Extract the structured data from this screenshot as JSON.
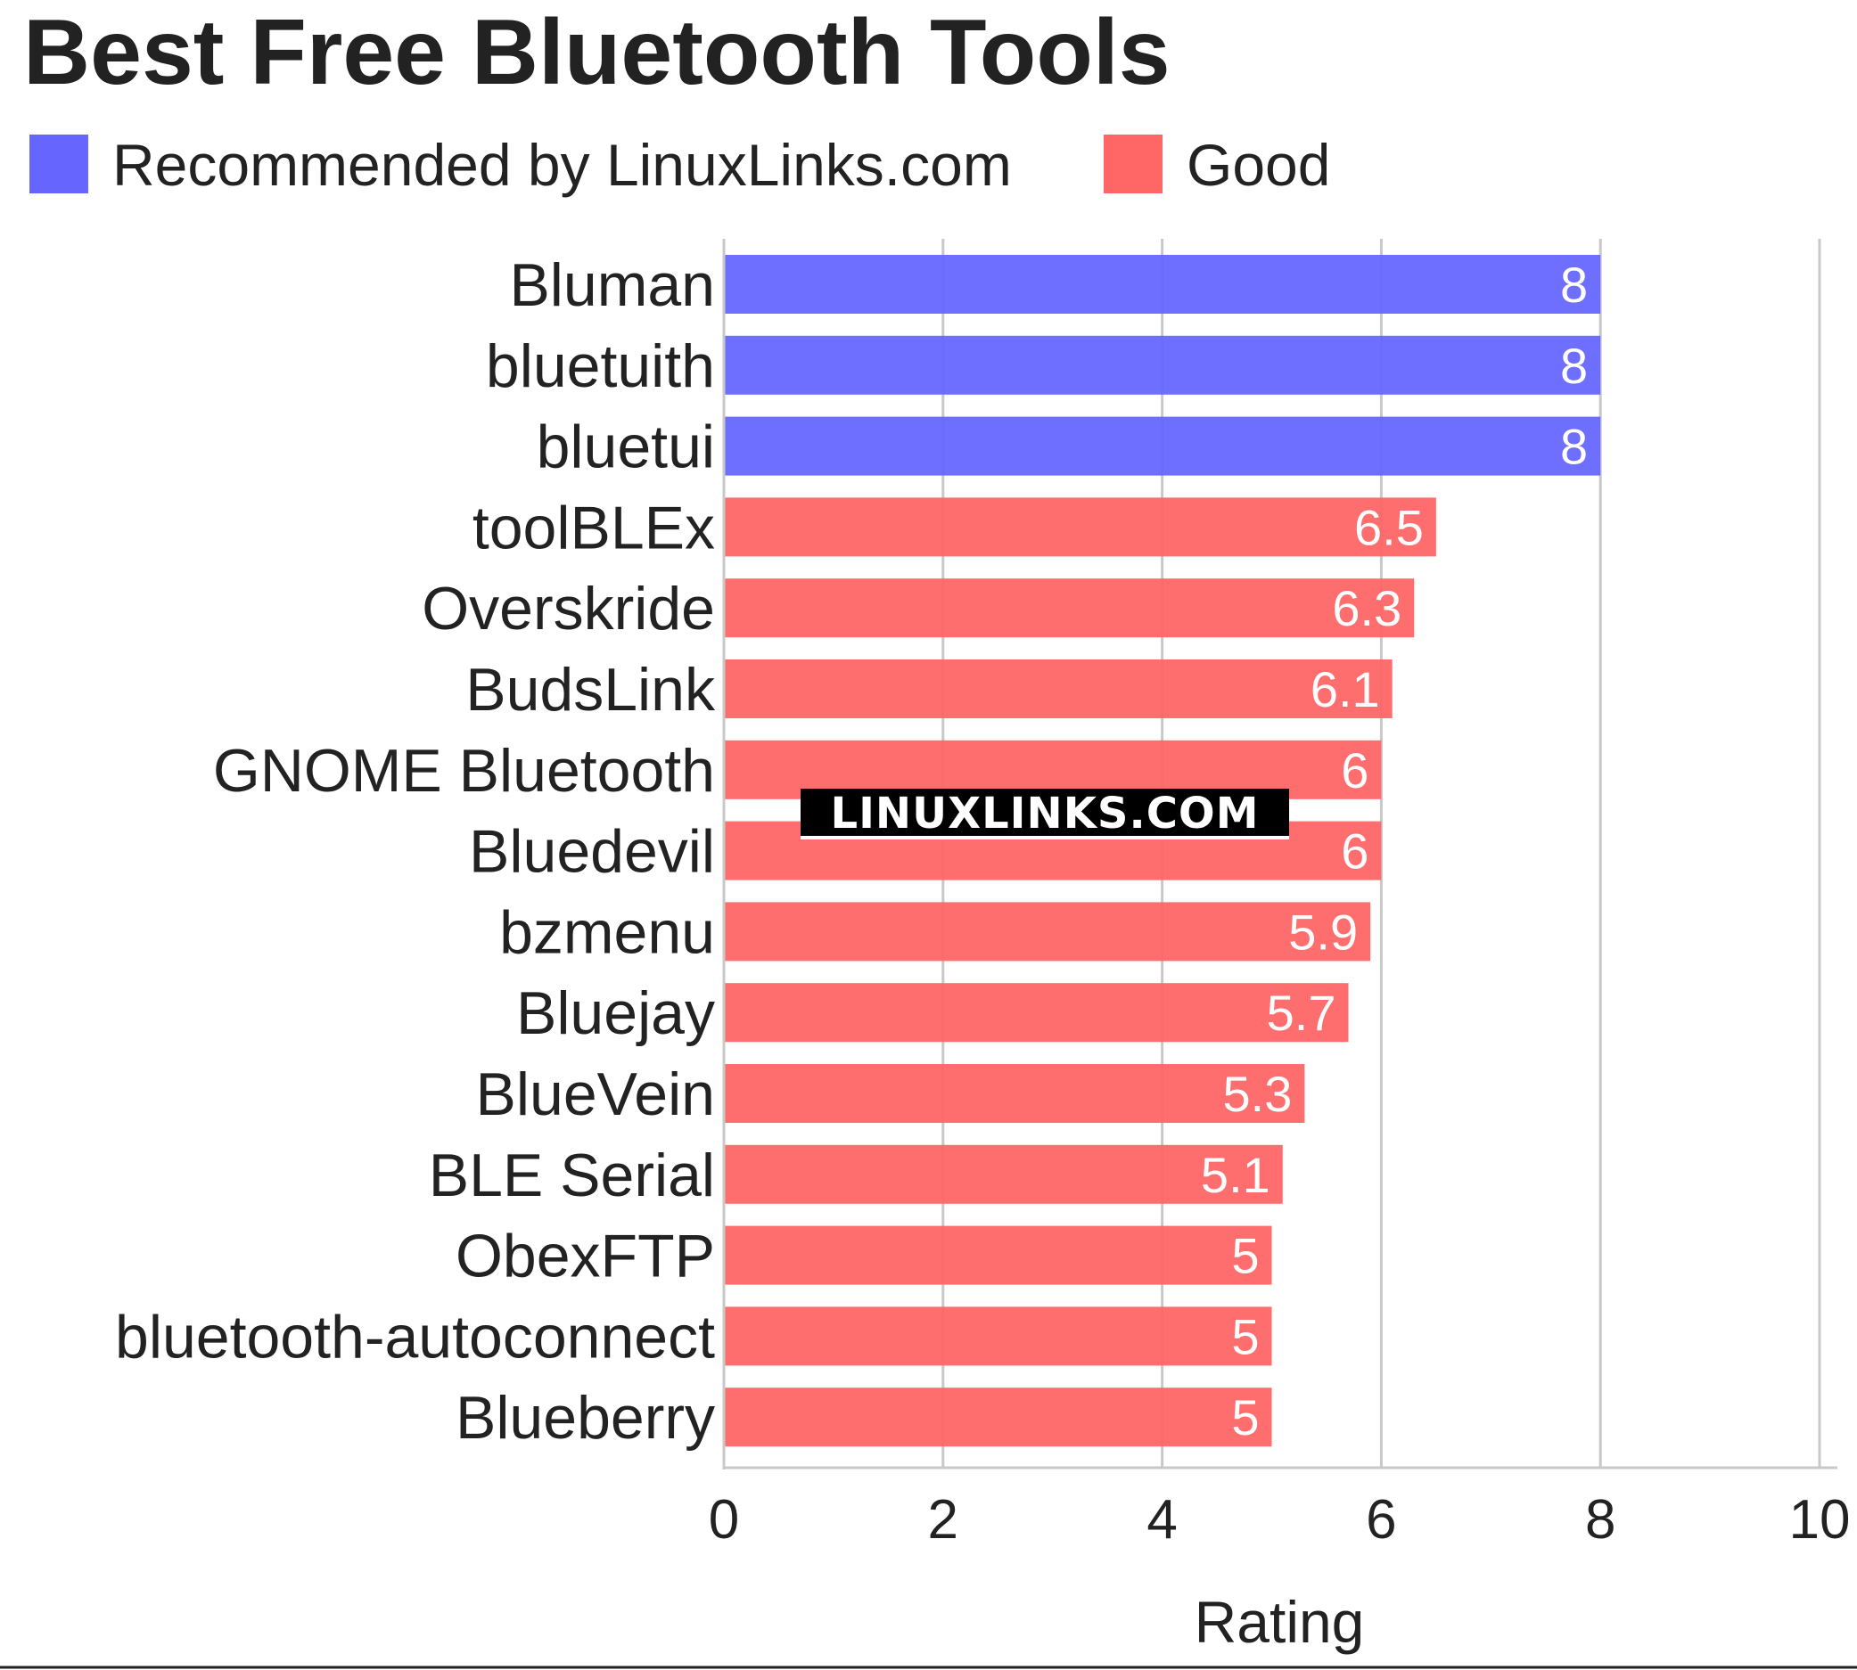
{
  "chart_data": {
    "type": "bar",
    "orientation": "horizontal",
    "title": "Best Free Bluetooth Tools",
    "xlabel": "Rating",
    "ylabel": "",
    "xlim": [
      0,
      10
    ],
    "xticks": [
      "0",
      "2",
      "4",
      "6",
      "8",
      "10"
    ],
    "grid": "vertical",
    "legend_placement": "top-left",
    "legend": [
      {
        "name": "Recommended by LinuxLinks.com",
        "color": "#6666ff"
      },
      {
        "name": "Good",
        "color": "#ff6666"
      }
    ],
    "categories": [
      "Bluman",
      "bluetuith",
      "bluetui",
      "toolBLEx",
      "Overskride",
      "BudsLink",
      "GNOME Bluetooth",
      "Bluedevil",
      "bzmenu",
      "Bluejay",
      "BlueVein",
      "BLE Serial",
      "ObexFTP",
      "bluetooth-autoconnect",
      "Blueberry"
    ],
    "values": [
      8,
      8,
      8,
      6.5,
      6.3,
      6.1,
      6,
      6,
      5.9,
      5.7,
      5.3,
      5.1,
      5,
      5,
      5
    ],
    "value_labels": [
      "8",
      "8",
      "8",
      "6.5",
      "6.3",
      "6.1",
      "6",
      "6",
      "5.9",
      "5.7",
      "5.3",
      "5.1",
      "5",
      "5",
      "5"
    ],
    "groups": [
      "Recommended by LinuxLinks.com",
      "Recommended by LinuxLinks.com",
      "Recommended by LinuxLinks.com",
      "Good",
      "Good",
      "Good",
      "Good",
      "Good",
      "Good",
      "Good",
      "Good",
      "Good",
      "Good",
      "Good",
      "Good"
    ]
  },
  "watermark": "LINUXLINKS.COM"
}
